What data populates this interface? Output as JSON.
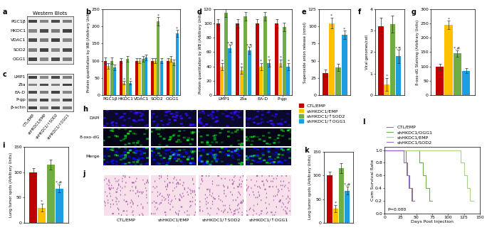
{
  "groups": [
    {
      "name": "CTL/EMP",
      "color": "#c00000"
    },
    {
      "name": "shHKDC1/EMP",
      "color": "#ffc000"
    },
    {
      "name": "shHKDC1/↑SOD2",
      "color": "#70ad47"
    },
    {
      "name": "shHKDC1/↑OGG1",
      "color": "#1e9de0"
    }
  ],
  "blots": [
    {
      "panel": "a",
      "title": "Western Blots",
      "rows": [
        "PGC1β",
        "HKDC1",
        "VDAC1",
        "SOD2",
        "OGG1"
      ]
    },
    {
      "panel": "c",
      "rows": [
        "LMP1",
        "Zta",
        "EA-D",
        "P-gp",
        "β-actin"
      ]
    }
  ],
  "staining": {
    "panel": "h",
    "rows": [
      "DAPI",
      "8-oxo-dG",
      "Merge"
    ]
  },
  "histology": {
    "panel": "j"
  },
  "chart_data": [
    {
      "panel": "b",
      "type": "bar",
      "ylabel": "Protein quantitation by WB (Arbitrary Unit)",
      "categories": [
        "PGC1β",
        "HKDC1",
        "VDAC1",
        "SOD2",
        "OGG1"
      ],
      "ylim": [
        0,
        250
      ],
      "yticks": [
        0,
        50,
        100,
        150,
        200,
        250
      ],
      "series": [
        {
          "values": [
            100,
            100,
            100,
            100,
            100
          ],
          "errors": [
            10,
            8,
            8,
            8,
            8
          ],
          "marks": [
            null,
            null,
            null,
            null,
            null
          ]
        },
        {
          "values": [
            85,
            35,
            100,
            100,
            105
          ],
          "errors": [
            8,
            5,
            8,
            8,
            8
          ],
          "marks": [
            null,
            "*",
            null,
            null,
            null
          ]
        },
        {
          "values": [
            100,
            105,
            105,
            215,
            95
          ],
          "errors": [
            10,
            8,
            8,
            12,
            8
          ],
          "marks": [
            null,
            null,
            null,
            "*",
            null
          ]
        },
        {
          "values": [
            80,
            35,
            110,
            100,
            180
          ],
          "errors": [
            8,
            5,
            8,
            8,
            10
          ],
          "marks": [
            null,
            "*",
            null,
            null,
            "*"
          ]
        }
      ]
    },
    {
      "panel": "d",
      "type": "bar",
      "ylabel": "Protein quantitation by WB (Arbitrary Units)",
      "categories": [
        "LMP1",
        "Zta",
        "EA-D",
        "P-gp"
      ],
      "ylim": [
        0,
        120
      ],
      "yticks": [
        0,
        20,
        40,
        60,
        80,
        100,
        120
      ],
      "series": [
        {
          "values": [
            100,
            100,
            100,
            100
          ],
          "errors": [
            6,
            6,
            6,
            6
          ],
          "marks": [
            null,
            null,
            null,
            null
          ]
        },
        {
          "values": [
            40,
            35,
            40,
            45
          ],
          "errors": [
            5,
            5,
            5,
            5
          ],
          "marks": [
            "*",
            "*",
            "*",
            "*"
          ]
        },
        {
          "values": [
            115,
            110,
            110,
            95
          ],
          "errors": [
            6,
            6,
            6,
            6
          ],
          "marks": [
            null,
            null,
            null,
            null
          ]
        },
        {
          "values": [
            65,
            62,
            45,
            40
          ],
          "errors": [
            5,
            5,
            5,
            5
          ],
          "marks": [
            "*,¶",
            "*,¶",
            "*",
            "*"
          ]
        }
      ]
    },
    {
      "panel": "e",
      "type": "bar",
      "ylabel": "Superoxide anion release (nmol)",
      "categories": [
        null
      ],
      "ylim": [
        0,
        125
      ],
      "yticks": [
        0,
        25,
        50,
        75,
        100,
        125
      ],
      "series": [
        {
          "values": [
            32
          ],
          "errors": [
            5
          ],
          "marks": [
            null
          ]
        },
        {
          "values": [
            105
          ],
          "errors": [
            8
          ],
          "marks": [
            "*"
          ]
        },
        {
          "values": [
            40
          ],
          "errors": [
            5
          ],
          "marks": [
            null
          ]
        },
        {
          "values": [
            88
          ],
          "errors": [
            6
          ],
          "marks": [
            "*"
          ]
        }
      ]
    },
    {
      "panel": "f",
      "type": "bar",
      "ylabel": "Viral genomes/cell",
      "categories": [
        null
      ],
      "ylim": [
        0,
        4
      ],
      "yticks": [
        0,
        1,
        2,
        3,
        4
      ],
      "series": [
        {
          "values": [
            3.2
          ],
          "errors": [
            0.4
          ],
          "marks": [
            null
          ]
        },
        {
          "values": [
            0.5
          ],
          "errors": [
            0.3
          ],
          "marks": [
            "*"
          ]
        },
        {
          "values": [
            3.3
          ],
          "errors": [
            0.4
          ],
          "marks": [
            null
          ]
        },
        {
          "values": [
            1.8
          ],
          "errors": [
            0.3
          ],
          "marks": [
            "*,¶"
          ]
        }
      ]
    },
    {
      "panel": "g",
      "type": "bar",
      "ylabel": "8-oxo-dG Staining (Arbitrary Units)",
      "categories": [
        null
      ],
      "ylim": [
        0,
        300
      ],
      "yticks": [
        0,
        50,
        100,
        150,
        200,
        250,
        300
      ],
      "series": [
        {
          "values": [
            100
          ],
          "errors": [
            10
          ],
          "marks": [
            null
          ]
        },
        {
          "values": [
            245
          ],
          "errors": [
            15
          ],
          "marks": [
            "*"
          ]
        },
        {
          "values": [
            145
          ],
          "errors": [
            12
          ],
          "marks": [
            "*,#"
          ]
        },
        {
          "values": [
            85
          ],
          "errors": [
            8
          ],
          "marks": [
            null
          ]
        }
      ]
    },
    {
      "panel": "i",
      "type": "bar",
      "ylabel": "Lung tumor spots (Arbitrary Units)",
      "categories": [
        null
      ],
      "ylim": [
        0,
        150
      ],
      "yticks": [
        0,
        50,
        100,
        150
      ],
      "series": [
        {
          "values": [
            100
          ],
          "errors": [
            8
          ],
          "marks": [
            null
          ]
        },
        {
          "values": [
            30
          ],
          "errors": [
            8
          ],
          "marks": [
            "*"
          ]
        },
        {
          "values": [
            115
          ],
          "errors": [
            10
          ],
          "marks": [
            null
          ]
        },
        {
          "values": [
            68
          ],
          "errors": [
            8
          ],
          "marks": [
            "*,#"
          ]
        }
      ]
    },
    {
      "panel": "k",
      "type": "bar",
      "ylabel": "Lung tumor spots (Arbitrary Units)",
      "categories": [
        null
      ],
      "ylim": [
        0,
        150
      ],
      "yticks": [
        0,
        50,
        100,
        150
      ],
      "series": [
        {
          "values": [
            100
          ],
          "errors": [
            8
          ],
          "marks": [
            null
          ]
        },
        {
          "values": [
            30
          ],
          "errors": [
            8
          ],
          "marks": [
            "*"
          ]
        },
        {
          "values": [
            115
          ],
          "errors": [
            10
          ],
          "marks": [
            null
          ]
        },
        {
          "values": [
            68
          ],
          "errors": [
            8
          ],
          "marks": [
            "*,#"
          ]
        }
      ]
    },
    {
      "panel": "l",
      "type": "line",
      "line_style": "steps",
      "xlabel": "Days Post Injection",
      "ylabel": "Cum Survival Rate",
      "annotation": "P=0.000",
      "xlim": [
        0,
        150
      ],
      "xticks": [
        0,
        25,
        50,
        75,
        100,
        125,
        150
      ],
      "ylim": [
        0,
        1.05
      ],
      "yticks": [
        0.0,
        0.2,
        0.4,
        0.6,
        0.8,
        1.0
      ],
      "legend": "lower left",
      "series": [
        {
          "name": "CTL/EMP",
          "color": "#808080",
          "x": [
            0,
            33,
            36,
            39,
            42,
            45
          ],
          "values": [
            1.0,
            0.8,
            0.6,
            0.4,
            0.2,
            0.2
          ]
        },
        {
          "name": "shHKDC1/OGG1",
          "color": "#70ad47",
          "x": [
            0,
            55,
            60,
            65,
            70,
            75
          ],
          "values": [
            1.0,
            0.8,
            0.6,
            0.4,
            0.2,
            0.2
          ]
        },
        {
          "name": "shHKDC1/EMP",
          "color": "#a9d18e",
          "x": [
            0,
            120,
            125,
            130,
            135,
            140
          ],
          "values": [
            1.0,
            0.8,
            0.6,
            0.4,
            0.2,
            0.2
          ]
        },
        {
          "name": "shHKDC1/SOD2",
          "color": "#9966cc",
          "x": [
            0,
            30,
            34,
            38,
            43,
            47
          ],
          "values": [
            1.0,
            0.8,
            0.6,
            0.4,
            0.2,
            0.2
          ]
        }
      ]
    }
  ]
}
